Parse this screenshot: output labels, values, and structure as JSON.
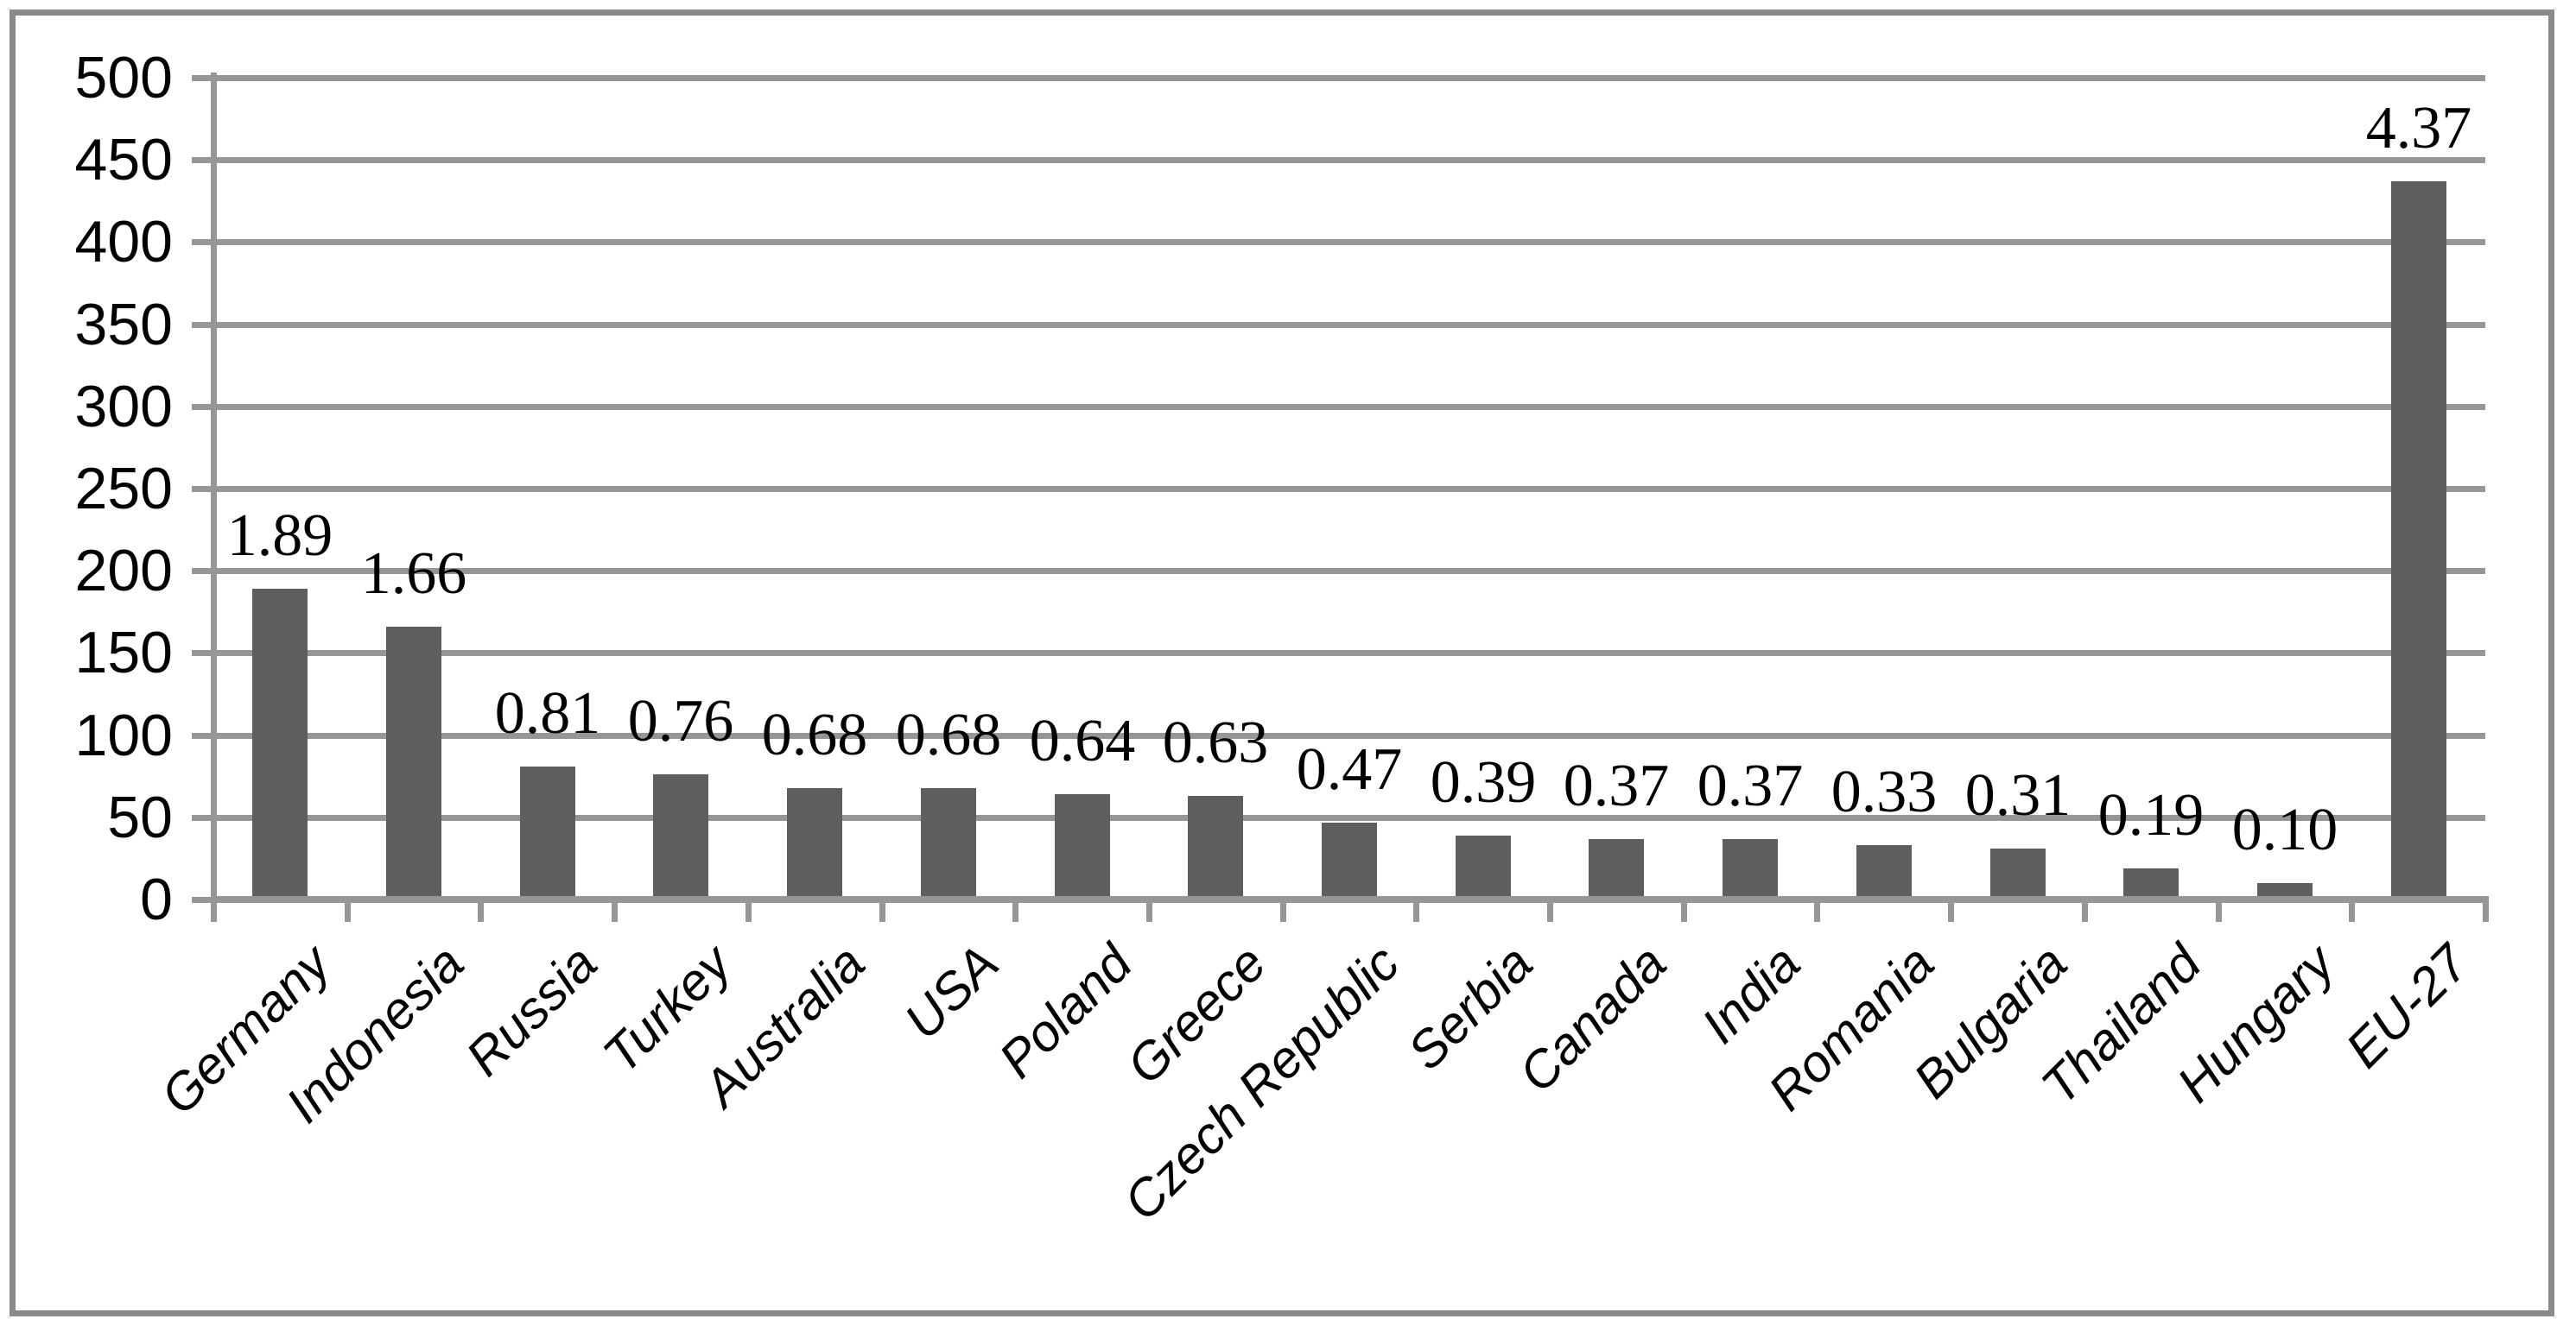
{
  "chart_data": {
    "type": "bar",
    "title": "",
    "xlabel": "",
    "ylabel": "",
    "categories": [
      "Germany",
      "Indonesia",
      "Russia",
      "Turkey",
      "Australia",
      "USA",
      "Poland",
      "Greece",
      "Czech Republic",
      "Serbia",
      "Canada",
      "India",
      "Romania",
      "Bulgaria",
      "Thailand",
      "Hungary",
      "EU-27"
    ],
    "data_labels": [
      "1.89",
      "1.66",
      "0.81",
      "0.76",
      "0.68",
      "0.68",
      "0.64",
      "0.63",
      "0.47",
      "0.39",
      "0.37",
      "0.37",
      "0.33",
      "0.31",
      "0.19",
      "0.10",
      "4.37"
    ],
    "values_plotted_on_axis": [
      189,
      166,
      81,
      76,
      68,
      68,
      64,
      63,
      47,
      39,
      37,
      37,
      33,
      31,
      19,
      10,
      437
    ],
    "ylim": [
      0,
      500
    ],
    "y_ticks": [
      0,
      50,
      100,
      150,
      200,
      250,
      300,
      350,
      400,
      450,
      500
    ],
    "grid": "horizontal",
    "legend": "none",
    "colors": {
      "bar": "#5e5e5e",
      "gridline": "#969696",
      "axis": "#969696",
      "figure_border": "#8a8a8a",
      "text": "#000000",
      "background": "#ffffff"
    }
  }
}
